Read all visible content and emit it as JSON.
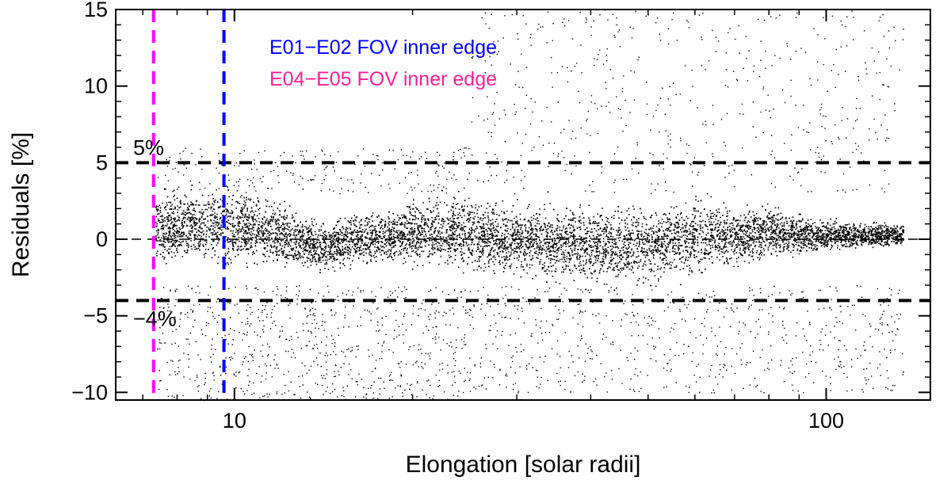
{
  "chart_data": {
    "type": "scatter",
    "x_scale": "log",
    "xlim": [
      6.3,
      150
    ],
    "ylim": [
      -10.5,
      15
    ],
    "xlabel": "Elongation [solar radii]",
    "ylabel": "Residuals [%]",
    "x_ticks": [
      {
        "value": 10,
        "label": "10"
      },
      {
        "value": 100,
        "label": "100"
      }
    ],
    "y_ticks": [
      {
        "value": -10,
        "label": "−10"
      },
      {
        "value": -5,
        "label": "−5"
      },
      {
        "value": 0,
        "label": "0"
      },
      {
        "value": 5,
        "label": "5"
      },
      {
        "value": 10,
        "label": "10"
      },
      {
        "value": 15,
        "label": "15"
      }
    ],
    "reference_lines": {
      "horizontal": [
        {
          "y": 5,
          "label": "5%",
          "style": "dashed-thick",
          "color": "#000000"
        },
        {
          "y": -4,
          "label": "−4%",
          "style": "dashed-thick",
          "color": "#000000"
        },
        {
          "y": 0,
          "label": "",
          "style": "dashed-thin",
          "color": "#000000"
        }
      ],
      "vertical": [
        {
          "x": 7.3,
          "label": "E04−E05 FOV inner edge",
          "color": "#ff00ff"
        },
        {
          "x": 9.6,
          "label": "E01−E02 FOV inner edge",
          "color": "#0000ff"
        }
      ]
    },
    "legend": {
      "placement": "top-left",
      "entries": [
        {
          "label": "E01−E02 FOV inner edge",
          "color": "#0000ff"
        },
        {
          "label": "E04−E05 FOV inner edge",
          "color": "#ff1e96"
        }
      ]
    },
    "point_color": "#000000",
    "envelope": [
      {
        "x": 7.4,
        "lo": -1.8,
        "hi": 3.5
      },
      {
        "x": 9,
        "lo": -2.2,
        "hi": 4.0
      },
      {
        "x": 11,
        "lo": -2.3,
        "hi": 3.6
      },
      {
        "x": 14,
        "lo": -2.5,
        "hi": 1.5
      },
      {
        "x": 18,
        "lo": -1.8,
        "hi": 2.3
      },
      {
        "x": 23,
        "lo": -2.2,
        "hi": 3.5
      },
      {
        "x": 30,
        "lo": -2.8,
        "hi": 2.6
      },
      {
        "x": 45,
        "lo": -3.6,
        "hi": 2.7
      },
      {
        "x": 60,
        "lo": -2.8,
        "hi": 3.1
      },
      {
        "x": 80,
        "lo": -1.6,
        "hi": 2.6
      },
      {
        "x": 95,
        "lo": -1.0,
        "hi": 1.6
      },
      {
        "x": 130,
        "lo": -0.6,
        "hi": 1.2
      }
    ]
  }
}
